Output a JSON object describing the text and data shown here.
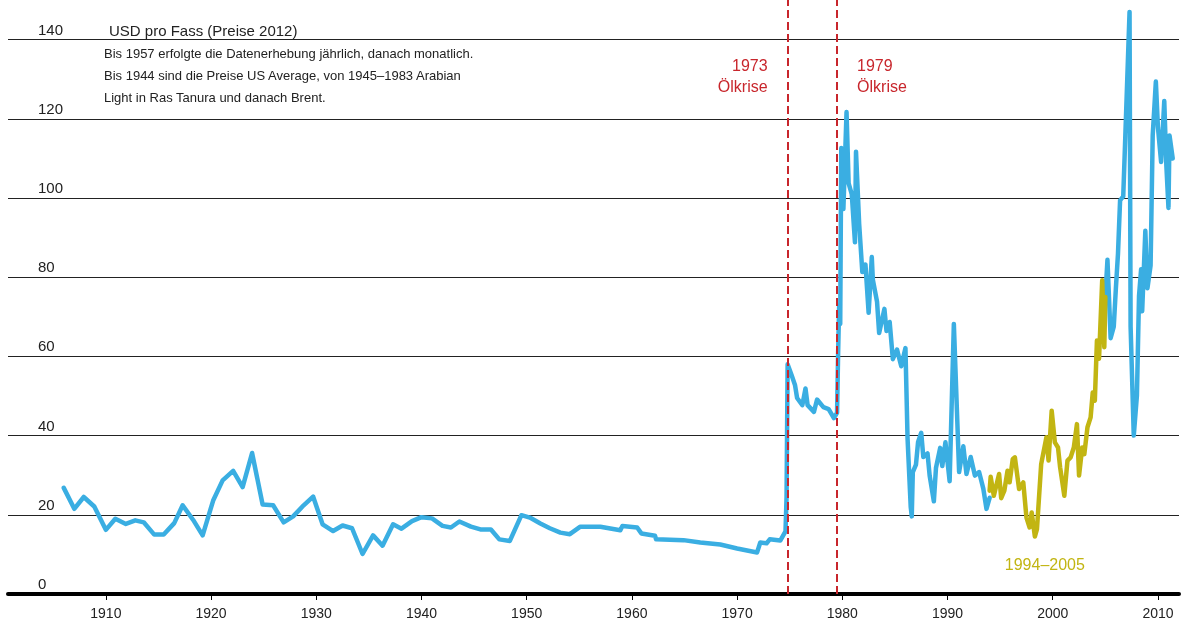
{
  "chart_data": {
    "type": "line",
    "title": "USD pro Fass (Preise 2012)",
    "annotations": [
      "Bis 1957 erfolgte die Datenerhebung jährlich, danach monatlich.",
      "Bis 1944 sind die Preise US Average, von 1945–1983 Arabian",
      "Light in Ras Tanura und danach Brent."
    ],
    "xlim": [
      1900.7,
      2012
    ],
    "xticks": [
      1910,
      1920,
      1930,
      1940,
      1950,
      1960,
      1970,
      1980,
      1990,
      2000,
      2010
    ],
    "ylim": [
      0,
      150
    ],
    "yticks": [
      0,
      20,
      40,
      60,
      80,
      100,
      120,
      140
    ],
    "grid": "y",
    "line_style": "solid",
    "ref_lines": [
      {
        "axis": "x",
        "value": 1974.8,
        "label": "1973\nÖlkrise",
        "color": "#c8262c",
        "line_style": "dashed"
      },
      {
        "axis": "x",
        "value": 1979.5,
        "label": "1979\nÖlkrise",
        "color": "#c8262c",
        "line_style": "dashed"
      }
    ],
    "series": [
      {
        "color": "#3aaee2",
        "x": [
          1906.0,
          1907.0,
          1907.9,
          1908.9,
          1910.0,
          1910.9,
          1911.9,
          1912.8,
          1913.6,
          1914.6,
          1915.5,
          1916.5,
          1917.3,
          1918.3,
          1919.2,
          1920.2,
          1921.1,
          1922.1,
          1923.0,
          1923.9,
          1924.9,
          1925.9,
          1926.9,
          1927.8,
          1928.8,
          1929.7,
          1930.6,
          1931.6,
          1932.5,
          1933.4,
          1934.4,
          1935.4,
          1936.3,
          1937.3,
          1938.1,
          1939.1,
          1940.0,
          1941.0,
          1942.0,
          1942.8,
          1943.6,
          1944.7,
          1945.6,
          1946.6,
          1947.4,
          1948.4,
          1949.5,
          1950.3,
          1951.3,
          1952.2,
          1953.2,
          1954.1,
          1955.1,
          1957.0,
          1958.9,
          1959.1,
          1960.5,
          1960.9,
          1962.2,
          1962.3,
          1964.9,
          1966.5,
          1968.4,
          1970.0,
          1971.9,
          1972.2,
          1972.8,
          1973.1,
          1974.1,
          1974.6,
          1974.7,
          1974.8,
          1975.2,
          1975.5,
          1975.7,
          1976.2,
          1976.5,
          1976.7,
          1977.3,
          1977.6,
          1978.2,
          1978.7,
          1979.2,
          1979.5,
          1979.6,
          1979.7,
          1979.8,
          1979.9,
          1980.1,
          1980.4,
          1980.6,
          1980.9,
          1981.2,
          1981.3,
          1981.6,
          1981.9,
          1982.2,
          1982.5,
          1982.8,
          1982.9,
          1983.3,
          1983.5,
          1984.0,
          1984.2,
          1984.5,
          1984.8,
          1985.2,
          1985.6,
          1986.0,
          1986.2,
          1986.5,
          1986.6,
          1986.7,
          1987.0,
          1987.2,
          1987.5,
          1987.7,
          1988.1,
          1988.3,
          1988.7,
          1988.9,
          1989.3,
          1989.5,
          1989.8,
          1990.2,
          1990.6,
          1991.1,
          1991.5,
          1991.8,
          1992.2,
          1992.6,
          1993.0,
          1993.4,
          1993.7,
          1994.0,
          1999.5,
          2005.0,
          2005.2,
          2005.5,
          2005.8,
          2006.0,
          2006.2,
          2006.4,
          2006.7,
          2006.9,
          2007.3,
          2007.4,
          2007.7,
          2008.0,
          2008.2,
          2008.4,
          2008.5,
          2008.8,
          2009.0,
          2009.3,
          2009.5,
          2009.8,
          2010.0,
          2010.3,
          2010.6,
          2010.8,
          2011.0,
          2011.1,
          2011.4
        ],
        "values": [
          26.8,
          21.5,
          24.5,
          22.1,
          16.2,
          19.0,
          17.7,
          18.6,
          18.1,
          15.0,
          15.0,
          17.9,
          22.4,
          18.7,
          14.8,
          23.6,
          28.7,
          31.1,
          27.0,
          35.6,
          22.6,
          22.4,
          18.1,
          19.6,
          22.4,
          24.6,
          17.6,
          15.9,
          17.3,
          16.6,
          10.1,
          14.8,
          12.2,
          17.6,
          16.5,
          18.4,
          19.4,
          19.1,
          17.2,
          16.8,
          18.3,
          17.0,
          16.3,
          16.3,
          13.8,
          13.4,
          19.9,
          19.3,
          17.8,
          16.6,
          15.5,
          15.1,
          17.0,
          17.0,
          16.1,
          17.2,
          16.8,
          15.3,
          14.7,
          13.8,
          13.6,
          13.0,
          12.5,
          11.5,
          10.5,
          13.0,
          12.8,
          13.8,
          13.5,
          15.8,
          24.6,
          58.0,
          55.1,
          52.8,
          49.5,
          47.7,
          51.9,
          47.7,
          46.0,
          49.1,
          47.2,
          46.7,
          44.4,
          45.8,
          60.7,
          72.9,
          68.2,
          112.6,
          97.2,
          121.7,
          103.7,
          100.9,
          88.8,
          111.7,
          93.5,
          81.3,
          83.2,
          71.0,
          85.1,
          79.4,
          73.8,
          65.9,
          72.0,
          66.4,
          68.7,
          59.3,
          61.7,
          57.5,
          62.1,
          39.3,
          22.0,
          19.6,
          30.8,
          32.7,
          38.4,
          40.7,
          34.6,
          35.5,
          29.9,
          23.4,
          31.8,
          36.9,
          32.3,
          38.3,
          28.5,
          68.2,
          30.8,
          37.3,
          30.3,
          34.6,
          29.9,
          30.8,
          26.6,
          21.5,
          24.3,
          null,
          75.0,
          84.4,
          64.6,
          67.5,
          77.2,
          85.9,
          99.4,
          100.4,
          115.8,
          147.0,
          67.5,
          40.0,
          50.1,
          75.3,
          82.0,
          71.4,
          91.7,
          77.2,
          83.0,
          115.8,
          129.4,
          117.8,
          109.1,
          124.5,
          108.1,
          97.5,
          115.8,
          110.0
        ]
      },
      {
        "name": "1994–2005",
        "color": "#c2b512",
        "x": [
          1994.0,
          1994.1,
          1994.4,
          1994.9,
          1995.1,
          1995.4,
          1995.7,
          1995.9,
          1996.2,
          1996.4,
          1996.8,
          1997.2,
          1997.5,
          1997.8,
          1998.0,
          1998.3,
          1998.5,
          1998.9,
          1999.4,
          1999.6,
          1999.9,
          2000.2,
          2000.5,
          2000.7,
          2001.1,
          2001.4,
          2001.7,
          2002.0,
          2002.3,
          2002.5,
          2002.8,
          2003.0,
          2003.3,
          2003.6,
          2003.8,
          2004.0,
          2004.2,
          2004.4,
          2004.7,
          2004.9,
          2005.0
        ],
        "values": [
          26.1,
          29.6,
          24.8,
          30.3,
          24.2,
          26.1,
          31.1,
          28.2,
          34.1,
          34.5,
          26.5,
          28.2,
          19.3,
          16.8,
          20.6,
          14.5,
          16.4,
          32.8,
          39.6,
          33.7,
          46.3,
          38.3,
          37.0,
          32.0,
          24.8,
          33.7,
          34.5,
          37.0,
          42.9,
          29.9,
          37.0,
          35.3,
          42.1,
          44.6,
          50.9,
          48.8,
          64.0,
          59.4,
          79.2,
          62.3,
          75.0
        ]
      }
    ]
  }
}
